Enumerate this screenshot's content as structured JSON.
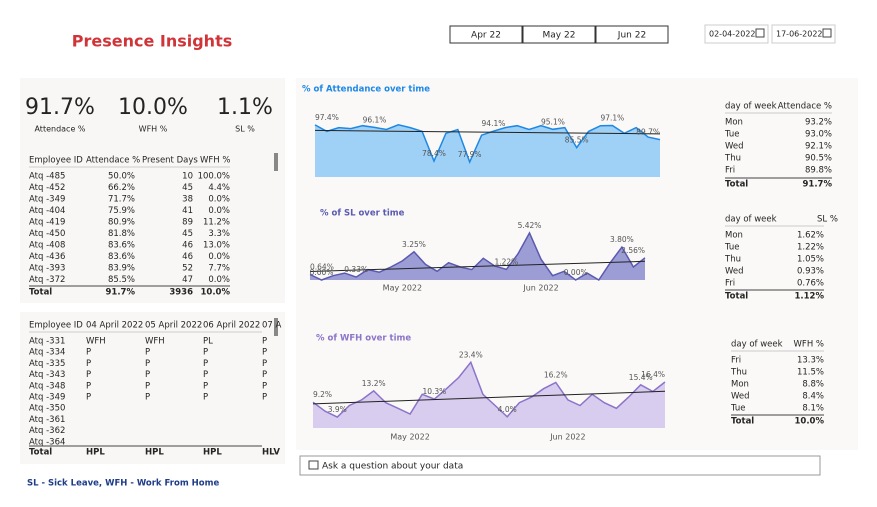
{
  "header": {
    "title": "Presence Insights",
    "months": [
      "Apr 22",
      "May 22",
      "Jun 22"
    ],
    "date_from": "02-04-2022",
    "date_to": "17-06-2022"
  },
  "kpis": [
    {
      "value": "91.7%",
      "label": "Attendace %"
    },
    {
      "value": "10.0%",
      "label": "WFH %"
    },
    {
      "value": "1.1%",
      "label": "SL %"
    }
  ],
  "employee_table": {
    "columns": [
      "Employee ID",
      "Attendace %",
      "Present Days",
      "WFH %"
    ],
    "rows": [
      [
        "Atq -485",
        "50.0%",
        "10",
        "100.0%"
      ],
      [
        "Atq -452",
        "66.2%",
        "45",
        "4.4%"
      ],
      [
        "Atq -349",
        "71.7%",
        "38",
        "0.0%"
      ],
      [
        "Atq -404",
        "75.9%",
        "41",
        "0.0%"
      ],
      [
        "Atq -419",
        "80.9%",
        "89",
        "11.2%"
      ],
      [
        "Atq -450",
        "81.8%",
        "45",
        "3.3%"
      ],
      [
        "Atq -408",
        "83.6%",
        "46",
        "13.0%"
      ],
      [
        "Atq -436",
        "83.6%",
        "46",
        "0.0%"
      ],
      [
        "Atq -393",
        "83.9%",
        "52",
        "7.7%"
      ],
      [
        "Atq -372",
        "85.5%",
        "47",
        "0.0%"
      ]
    ],
    "total": [
      "Total",
      "91.7%",
      "3936",
      "10.0%"
    ]
  },
  "daily_table": {
    "columns": [
      "Employee ID",
      "04 April 2022",
      "05 April 2022",
      "06 April 2022",
      "07 A"
    ],
    "rows": [
      [
        "Atq -331",
        "WFH",
        "WFH",
        "PL",
        "P"
      ],
      [
        "Atq -334",
        "P",
        "P",
        "P",
        "P"
      ],
      [
        "Atq -335",
        "P",
        "P",
        "P",
        "P"
      ],
      [
        "Atq -343",
        "P",
        "P",
        "P",
        "P"
      ],
      [
        "Atq -348",
        "P",
        "P",
        "P",
        "P"
      ],
      [
        "Atq -349",
        "P",
        "P",
        "P",
        "P"
      ],
      [
        "Atq -350"
      ],
      [
        "Atq -361"
      ],
      [
        "Atq -362"
      ],
      [
        "Atq -364"
      ]
    ],
    "total": [
      "Total",
      "HPL",
      "HPL",
      "HPL",
      "HLV"
    ]
  },
  "attendance_chart": {
    "type": "area",
    "title": "% of Attendance over time",
    "ylim": [
      70,
      100
    ],
    "color": "#1e88e5",
    "fill": "#9fd0f5",
    "values": [
      97.4,
      94,
      96,
      95.5,
      97,
      96.1,
      95,
      97.5,
      96,
      94,
      78.4,
      93,
      95,
      77.9,
      92,
      94.1,
      96,
      97,
      95,
      97,
      95.1,
      96,
      85.5,
      94,
      97,
      97.1,
      93,
      96,
      91,
      89.7
    ],
    "value_labels": [
      "97.4%",
      null,
      null,
      null,
      null,
      "96.1%",
      null,
      null,
      null,
      null,
      "78.4%",
      null,
      null,
      "77.9%",
      null,
      "94.1%",
      null,
      null,
      null,
      null,
      "95.1%",
      null,
      "85.5%",
      null,
      null,
      "97.1%",
      null,
      null,
      null,
      "89.7%"
    ]
  },
  "sl_chart": {
    "type": "area",
    "title": "% of SL over time",
    "ylim": [
      0,
      6
    ],
    "color": "#5a5ab0",
    "fill": "#9d9dd6",
    "categories": [
      null,
      null,
      null,
      null,
      null,
      null,
      null,
      null,
      "May 2022",
      null,
      null,
      null,
      null,
      null,
      null,
      null,
      null,
      null,
      null,
      null,
      "Jun 2022",
      null,
      null,
      null,
      null,
      null,
      null,
      null,
      null,
      null
    ],
    "values": [
      0.64,
      0,
      0.5,
      0.8,
      0.33,
      1.2,
      0.9,
      1.5,
      2.2,
      3.25,
      1.8,
      1,
      2,
      1.5,
      1.2,
      2.5,
      1.6,
      1.22,
      3,
      5.42,
      2.4,
      0.5,
      1,
      0,
      0.8,
      0,
      2,
      3.8,
      1.5,
      2.56
    ],
    "value_labels": [
      "0.64%",
      "0.00%",
      null,
      null,
      "0.33%",
      null,
      null,
      null,
      null,
      "3.25%",
      null,
      null,
      null,
      null,
      null,
      null,
      null,
      "1.22%",
      null,
      "5.42%",
      null,
      null,
      null,
      "0.00%",
      null,
      null,
      null,
      "3.80%",
      null,
      "2.56%"
    ]
  },
  "wfh_chart": {
    "type": "area",
    "title": "% of WFH over time",
    "ylim": [
      0,
      26
    ],
    "color": "#8b74c9",
    "fill": "#d8cdef",
    "categories": [
      null,
      null,
      null,
      null,
      null,
      null,
      null,
      null,
      "May 2022",
      null,
      null,
      null,
      null,
      null,
      null,
      null,
      null,
      null,
      null,
      null,
      null,
      "Jun 2022",
      null,
      null,
      null,
      null,
      null,
      null,
      null,
      null
    ],
    "values": [
      9.2,
      6,
      3.9,
      8,
      10,
      13.2,
      9,
      7,
      5,
      12,
      10.3,
      14,
      18,
      23.4,
      12,
      8,
      4.0,
      9,
      11,
      14,
      16.2,
      10,
      8,
      12,
      9,
      7,
      11,
      15.4,
      13,
      16.4
    ],
    "value_labels": [
      "9.2%",
      null,
      "3.9%",
      null,
      null,
      "13.2%",
      null,
      null,
      null,
      null,
      "10.3%",
      null,
      null,
      "23.4%",
      null,
      null,
      "4.0%",
      null,
      null,
      null,
      "16.2%",
      null,
      null,
      null,
      null,
      null,
      null,
      "15.4%",
      null,
      "16.4%"
    ]
  },
  "attendance_days": {
    "columns": [
      "day of week",
      "Attendace %"
    ],
    "rows": [
      [
        "Mon",
        "93.2%"
      ],
      [
        "Tue",
        "93.0%"
      ],
      [
        "Wed",
        "92.1%"
      ],
      [
        "Thu",
        "90.5%"
      ],
      [
        "Fri",
        "89.8%"
      ]
    ],
    "total": [
      "Total",
      "91.7%"
    ]
  },
  "sl_days": {
    "columns": [
      "day of week",
      "SL %"
    ],
    "rows": [
      [
        "Mon",
        "1.62%"
      ],
      [
        "Tue",
        "1.22%"
      ],
      [
        "Thu",
        "1.05%"
      ],
      [
        "Wed",
        "0.93%"
      ],
      [
        "Fri",
        "0.76%"
      ]
    ],
    "total": [
      "Total",
      "1.12%"
    ]
  },
  "wfh_days": {
    "columns": [
      "day of week",
      "WFH %"
    ],
    "rows": [
      [
        "Fri",
        "13.3%"
      ],
      [
        "Thu",
        "11.5%"
      ],
      [
        "Mon",
        "8.8%"
      ],
      [
        "Wed",
        "8.4%"
      ],
      [
        "Tue",
        "8.1%"
      ]
    ],
    "total": [
      "Total",
      "10.0%"
    ]
  },
  "qna": "Ask a question about your data",
  "footer": "SL - Sick Leave, WFH - Work From Home"
}
